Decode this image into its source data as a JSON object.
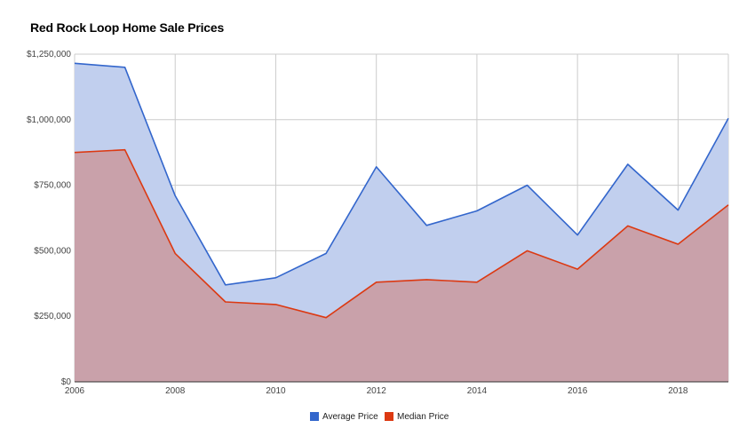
{
  "chart_data": {
    "type": "area",
    "title": "Red Rock Loop Home Sale Prices",
    "x": [
      2006,
      2007,
      2008,
      2009,
      2010,
      2011,
      2012,
      2013,
      2014,
      2015,
      2016,
      2017,
      2018,
      2019
    ],
    "series": [
      {
        "name": "Average Price",
        "color": "#3366cc",
        "fill": "#c1cfee",
        "values": [
          1215000,
          1200000,
          710000,
          370000,
          397000,
          490000,
          820000,
          597000,
          652000,
          750000,
          560000,
          830000,
          655000,
          1005000
        ]
      },
      {
        "name": "Median Price",
        "color": "#dc3912",
        "fill": "#c9a1aa",
        "values": [
          875000,
          885000,
          490000,
          305000,
          295000,
          245000,
          380000,
          390000,
          380000,
          500000,
          430000,
          595000,
          525000,
          675000
        ]
      }
    ],
    "x_ticks": [
      "2006",
      "2008",
      "2010",
      "2012",
      "2014",
      "2016",
      "2018"
    ],
    "x_tick_values": [
      2006,
      2008,
      2010,
      2012,
      2014,
      2016,
      2018
    ],
    "y_ticks": [
      "$0",
      "$250,000",
      "$500,000",
      "$750,000",
      "$1,000,000",
      "$1,250,000"
    ],
    "y_tick_values": [
      0,
      250000,
      500000,
      750000,
      1000000,
      1250000
    ],
    "xlim": [
      2006,
      2019
    ],
    "ylim": [
      0,
      1250000
    ],
    "grid": true,
    "legend_position": "bottom"
  }
}
